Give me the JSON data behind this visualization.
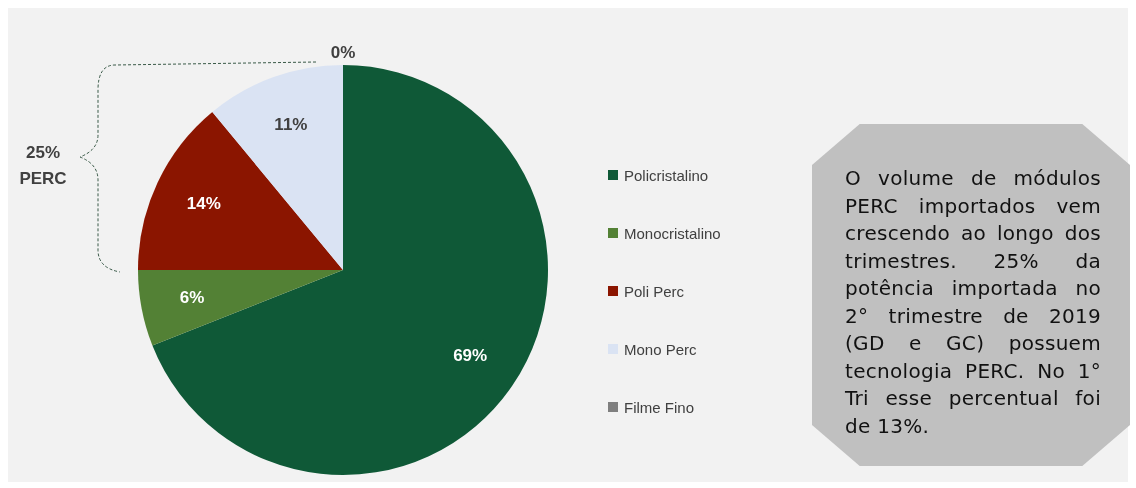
{
  "chart_data": {
    "type": "pie",
    "categories": [
      "Policristalino",
      "Monocristalino",
      "Poli Perc",
      "Mono Perc",
      "Filme Fino"
    ],
    "values": [
      69,
      6,
      14,
      11,
      0
    ],
    "colors": [
      "#0f5937",
      "#538135",
      "#8b1500",
      "#dae3f3",
      "#7f7f7f"
    ],
    "value_labels": [
      "69%",
      "6%",
      "14%",
      "11%",
      "0%"
    ],
    "legend": "right",
    "annotations": [
      "25% PERC",
      "O volume de módulos PERC importados vem crescendo ao longo dos trimestres. 25% da potência importada no 2° trimestre de 2019 (GD e GC) possuem tecnologia PERC. No 1° Tri esse percentual foi de 13%."
    ]
  }
}
